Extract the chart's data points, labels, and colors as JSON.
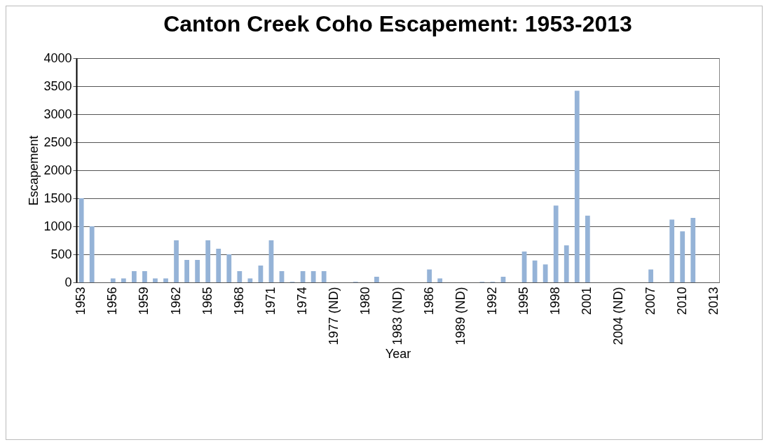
{
  "chart_data": {
    "type": "bar",
    "title": "Canton Creek Coho Escapement: 1953-2013",
    "xlabel": "Year",
    "ylabel": "Escapement",
    "categories": [
      "1953",
      null,
      null,
      "1956",
      null,
      null,
      "1959",
      null,
      null,
      "1962",
      null,
      null,
      "1965",
      null,
      null,
      "1968",
      null,
      null,
      "1971",
      null,
      null,
      "1974",
      null,
      null,
      "1977 (ND)",
      null,
      null,
      "1980",
      null,
      null,
      "1983 (ND)",
      null,
      null,
      "1986",
      null,
      null,
      "1989 (ND)",
      null,
      null,
      "1992",
      null,
      null,
      "1995",
      null,
      null,
      "1998",
      null,
      null,
      "2001",
      null,
      null,
      "2004 (ND)",
      null,
      null,
      "2007",
      null,
      null,
      "2010",
      null,
      null,
      "2013"
    ],
    "values": [
      1500,
      1000,
      null,
      70,
      70,
      200,
      200,
      70,
      70,
      750,
      400,
      400,
      750,
      600,
      500,
      200,
      70,
      300,
      750,
      200,
      10,
      200,
      200,
      200,
      null,
      null,
      10,
      null,
      100,
      null,
      null,
      null,
      null,
      230,
      70,
      null,
      null,
      null,
      10,
      10,
      100,
      null,
      550,
      390,
      320,
      1370,
      660,
      3420,
      1190,
      null,
      null,
      null,
      null,
      null,
      230,
      null,
      1120,
      910,
      1150,
      null,
      null
    ],
    "color": "#95b3d7",
    "ylim": [
      0,
      4000
    ],
    "yticks": [
      0,
      500,
      1000,
      1500,
      2000,
      2500,
      3000,
      3500,
      4000
    ],
    "grid": "y"
  }
}
